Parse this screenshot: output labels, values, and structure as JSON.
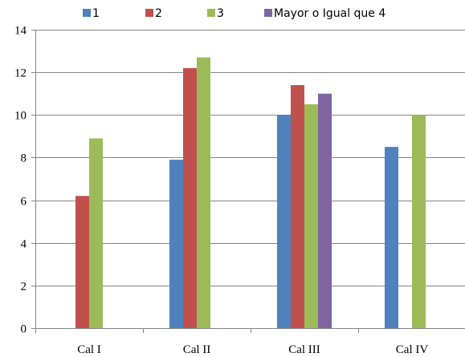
{
  "chart_data": {
    "type": "bar",
    "categories": [
      "Cal I",
      "Cal II",
      "Cal III",
      "Cal IV"
    ],
    "series": [
      {
        "name": "1",
        "color": "#4F81BD",
        "values": [
          0,
          7.9,
          10,
          8.5
        ]
      },
      {
        "name": "2",
        "color": "#C0504D",
        "values": [
          6.2,
          12.2,
          11.4,
          0
        ]
      },
      {
        "name": "3",
        "color": "#9BBB59",
        "values": [
          8.9,
          12.7,
          10.5,
          10
        ]
      },
      {
        "name": "Mayor o Igual que 4",
        "color": "#8064A2",
        "values": [
          0,
          0,
          11,
          0
        ]
      }
    ],
    "ylim": [
      0,
      14
    ],
    "yticks": [
      0,
      2,
      4,
      6,
      8,
      10,
      12,
      14
    ],
    "ytick_labels": [
      "0",
      "2",
      "4",
      "6",
      "8",
      "10",
      "12",
      "14"
    ],
    "grid": true,
    "legend_position": "top"
  }
}
